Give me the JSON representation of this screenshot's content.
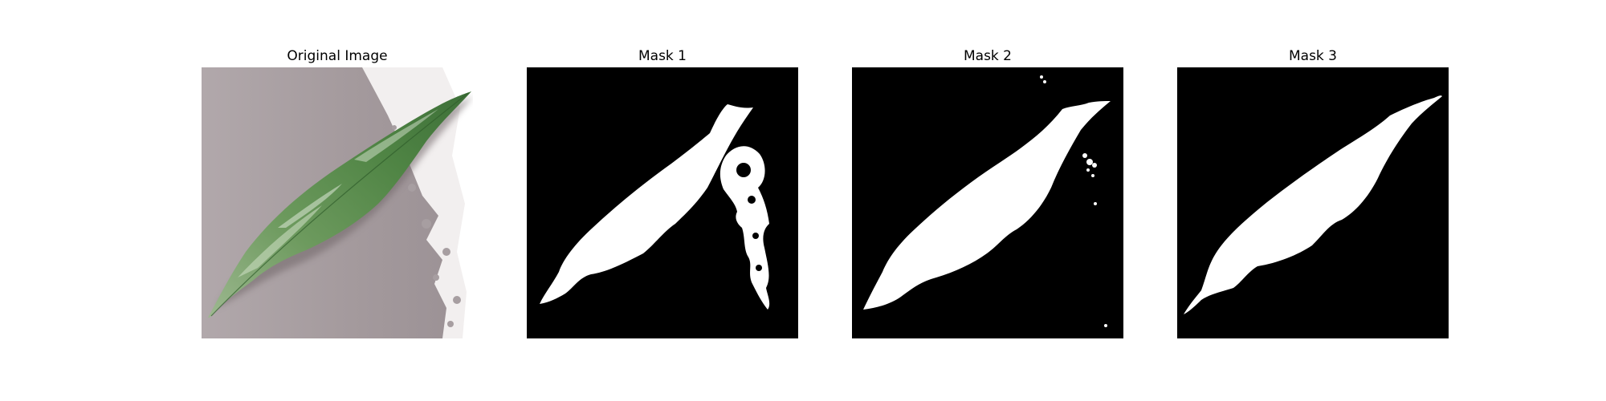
{
  "figure": {
    "panels": [
      {
        "title": "Original Image",
        "kind": "photo"
      },
      {
        "title": "Mask 1",
        "kind": "mask"
      },
      {
        "title": "Mask 2",
        "kind": "mask"
      },
      {
        "title": "Mask 3",
        "kind": "mask"
      }
    ]
  },
  "colors": {
    "mask_background": "#000000",
    "mask_foreground": "#ffffff",
    "leaf_green": "#5f9450",
    "surface_gray": "#a89ea1"
  }
}
